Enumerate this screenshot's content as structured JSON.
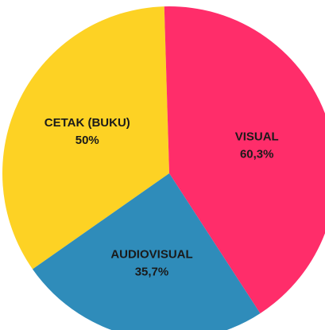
{
  "chart_data": {
    "type": "pie",
    "categories": [
      "CETAK (BUKU)",
      "VISUAL",
      "AUDIOVISUAL"
    ],
    "values": [
      50,
      60.3,
      35.7
    ],
    "value_labels": [
      "50%",
      "60,3%",
      "35,7%"
    ],
    "colors": [
      "#fdd224",
      "#ff2d6a",
      "#2f8cba"
    ]
  }
}
